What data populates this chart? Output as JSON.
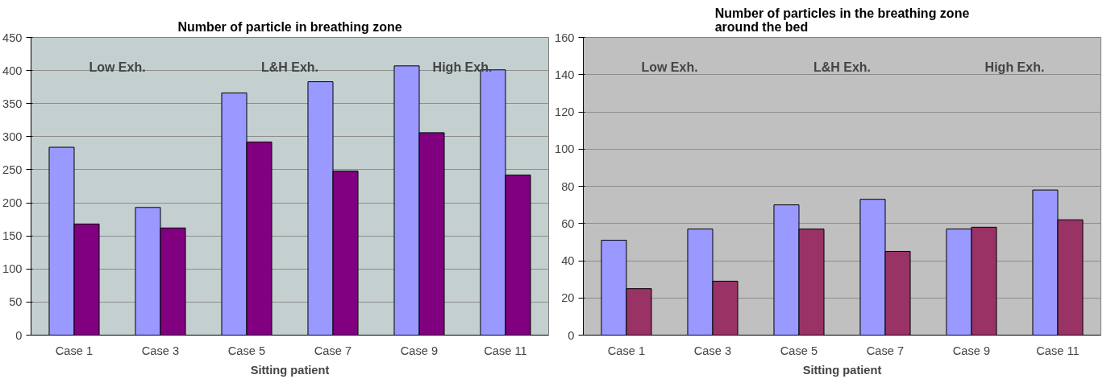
{
  "chart_data": [
    {
      "type": "bar",
      "title": "Number of particle in breathing zone",
      "xlabel": "Sitting patient",
      "categories": [
        "Case 1",
        "Case 3",
        "Case 5",
        "Case 7",
        "Case 9",
        "Case 11"
      ],
      "series": [
        {
          "color": "#9999ff",
          "values": [
            284,
            193,
            366,
            383,
            407,
            401
          ]
        },
        {
          "color": "#800080",
          "values": [
            168,
            162,
            292,
            248,
            306,
            242
          ]
        }
      ],
      "ylim": [
        0,
        450
      ],
      "yticks": [
        0,
        50,
        100,
        150,
        200,
        250,
        300,
        350,
        400,
        450
      ],
      "grid": "y",
      "annotations": [
        "Low Exh.",
        "L&H Exh.",
        "High Exh."
      ]
    },
    {
      "type": "bar",
      "title": "Number of particles in the breathing zone\naround the bed",
      "xlabel": "Sitting patient",
      "categories": [
        "Case 1",
        "Case 3",
        "Case 5",
        "Case 7",
        "Case 9",
        "Case 11"
      ],
      "series": [
        {
          "color": "#9999ff",
          "values": [
            51,
            57,
            70,
            73,
            57,
            78
          ]
        },
        {
          "color": "#993366",
          "values": [
            25,
            29,
            57,
            45,
            58,
            62
          ]
        }
      ],
      "ylim": [
        0,
        160
      ],
      "yticks": [
        0,
        20,
        40,
        60,
        80,
        100,
        120,
        140,
        160
      ],
      "grid": "y",
      "annotations": [
        "Low Exh.",
        "L&H Exh.",
        "High Exh."
      ]
    }
  ]
}
